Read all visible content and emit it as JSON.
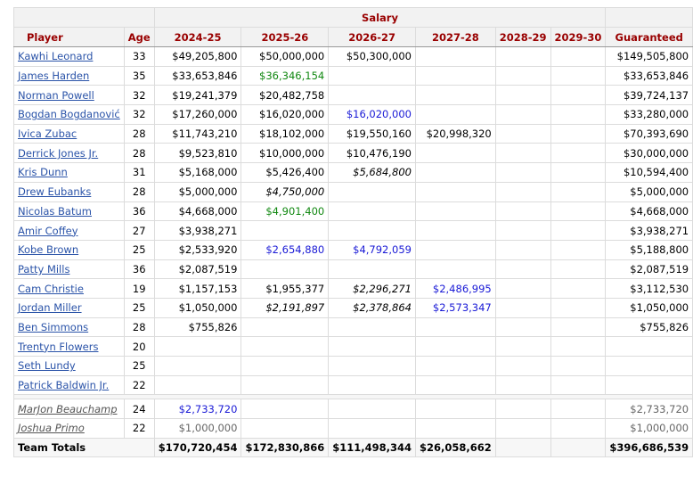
{
  "header": {
    "salary_label": "Salary",
    "columns": [
      "Player",
      "Age",
      "2024-25",
      "2025-26",
      "2026-27",
      "2027-28",
      "2028-29",
      "2029-30",
      "Guaranteed"
    ]
  },
  "rows": [
    {
      "player": "Kawhi Leonard",
      "age": "33",
      "cells": [
        {
          "v": "$49,205,800"
        },
        {
          "v": "$50,000,000"
        },
        {
          "v": "$50,300,000"
        },
        {
          "v": ""
        },
        {
          "v": ""
        },
        {
          "v": ""
        }
      ],
      "guaranteed": "$149,505,800"
    },
    {
      "player": "James Harden",
      "age": "35",
      "cells": [
        {
          "v": "$33,653,846"
        },
        {
          "v": "$36,346,154",
          "s": "green"
        },
        {
          "v": ""
        },
        {
          "v": ""
        },
        {
          "v": ""
        },
        {
          "v": ""
        }
      ],
      "guaranteed": "$33,653,846"
    },
    {
      "player": "Norman Powell",
      "age": "32",
      "cells": [
        {
          "v": "$19,241,379"
        },
        {
          "v": "$20,482,758"
        },
        {
          "v": ""
        },
        {
          "v": ""
        },
        {
          "v": ""
        },
        {
          "v": ""
        }
      ],
      "guaranteed": "$39,724,137"
    },
    {
      "player": "Bogdan Bogdanović",
      "age": "32",
      "cells": [
        {
          "v": "$17,260,000"
        },
        {
          "v": "$16,020,000"
        },
        {
          "v": "$16,020,000",
          "s": "blue"
        },
        {
          "v": ""
        },
        {
          "v": ""
        },
        {
          "v": ""
        }
      ],
      "guaranteed": "$33,280,000"
    },
    {
      "player": "Ivica Zubac",
      "age": "28",
      "cells": [
        {
          "v": "$11,743,210"
        },
        {
          "v": "$18,102,000"
        },
        {
          "v": "$19,550,160"
        },
        {
          "v": "$20,998,320"
        },
        {
          "v": ""
        },
        {
          "v": ""
        }
      ],
      "guaranteed": "$70,393,690"
    },
    {
      "player": "Derrick Jones Jr.",
      "age": "28",
      "cells": [
        {
          "v": "$9,523,810"
        },
        {
          "v": "$10,000,000"
        },
        {
          "v": "$10,476,190"
        },
        {
          "v": ""
        },
        {
          "v": ""
        },
        {
          "v": ""
        }
      ],
      "guaranteed": "$30,000,000"
    },
    {
      "player": "Kris Dunn",
      "age": "31",
      "cells": [
        {
          "v": "$5,168,000"
        },
        {
          "v": "$5,426,400"
        },
        {
          "v": "$5,684,800",
          "s": "ital"
        },
        {
          "v": ""
        },
        {
          "v": ""
        },
        {
          "v": ""
        }
      ],
      "guaranteed": "$10,594,400"
    },
    {
      "player": "Drew Eubanks",
      "age": "28",
      "cells": [
        {
          "v": "$5,000,000"
        },
        {
          "v": "$4,750,000",
          "s": "ital"
        },
        {
          "v": ""
        },
        {
          "v": ""
        },
        {
          "v": ""
        },
        {
          "v": ""
        }
      ],
      "guaranteed": "$5,000,000"
    },
    {
      "player": "Nicolas Batum",
      "age": "36",
      "cells": [
        {
          "v": "$4,668,000"
        },
        {
          "v": "$4,901,400",
          "s": "green"
        },
        {
          "v": ""
        },
        {
          "v": ""
        },
        {
          "v": ""
        },
        {
          "v": ""
        }
      ],
      "guaranteed": "$4,668,000"
    },
    {
      "player": "Amir Coffey",
      "age": "27",
      "cells": [
        {
          "v": "$3,938,271"
        },
        {
          "v": ""
        },
        {
          "v": ""
        },
        {
          "v": ""
        },
        {
          "v": ""
        },
        {
          "v": ""
        }
      ],
      "guaranteed": "$3,938,271"
    },
    {
      "player": "Kobe Brown",
      "age": "25",
      "cells": [
        {
          "v": "$2,533,920"
        },
        {
          "v": "$2,654,880",
          "s": "blue"
        },
        {
          "v": "$4,792,059",
          "s": "blue"
        },
        {
          "v": ""
        },
        {
          "v": ""
        },
        {
          "v": ""
        }
      ],
      "guaranteed": "$5,188,800"
    },
    {
      "player": "Patty Mills",
      "age": "36",
      "cells": [
        {
          "v": "$2,087,519"
        },
        {
          "v": ""
        },
        {
          "v": ""
        },
        {
          "v": ""
        },
        {
          "v": ""
        },
        {
          "v": ""
        }
      ],
      "guaranteed": "$2,087,519"
    },
    {
      "player": "Cam Christie",
      "age": "19",
      "cells": [
        {
          "v": "$1,157,153"
        },
        {
          "v": "$1,955,377"
        },
        {
          "v": "$2,296,271",
          "s": "ital"
        },
        {
          "v": "$2,486,995",
          "s": "blue"
        },
        {
          "v": ""
        },
        {
          "v": ""
        }
      ],
      "guaranteed": "$3,112,530"
    },
    {
      "player": "Jordan Miller",
      "age": "25",
      "cells": [
        {
          "v": "$1,050,000"
        },
        {
          "v": "$2,191,897",
          "s": "ital"
        },
        {
          "v": "$2,378,864",
          "s": "ital"
        },
        {
          "v": "$2,573,347",
          "s": "blue"
        },
        {
          "v": ""
        },
        {
          "v": ""
        }
      ],
      "guaranteed": "$1,050,000"
    },
    {
      "player": "Ben Simmons",
      "age": "28",
      "cells": [
        {
          "v": "$755,826"
        },
        {
          "v": ""
        },
        {
          "v": ""
        },
        {
          "v": ""
        },
        {
          "v": ""
        },
        {
          "v": ""
        }
      ],
      "guaranteed": "$755,826"
    },
    {
      "player": "Trentyn Flowers",
      "age": "20",
      "cells": [
        {
          "v": ""
        },
        {
          "v": ""
        },
        {
          "v": ""
        },
        {
          "v": ""
        },
        {
          "v": ""
        },
        {
          "v": ""
        }
      ],
      "guaranteed": ""
    },
    {
      "player": "Seth Lundy",
      "age": "25",
      "cells": [
        {
          "v": ""
        },
        {
          "v": ""
        },
        {
          "v": ""
        },
        {
          "v": ""
        },
        {
          "v": ""
        },
        {
          "v": ""
        }
      ],
      "guaranteed": ""
    },
    {
      "player": "Patrick Baldwin Jr.",
      "age": "22",
      "cells": [
        {
          "v": ""
        },
        {
          "v": ""
        },
        {
          "v": ""
        },
        {
          "v": ""
        },
        {
          "v": ""
        },
        {
          "v": ""
        }
      ],
      "guaranteed": ""
    }
  ],
  "dead_rows": [
    {
      "player": "MarJon Beauchamp",
      "age": "24",
      "cells": [
        {
          "v": "$2,733,720",
          "s": "blue"
        },
        {
          "v": ""
        },
        {
          "v": ""
        },
        {
          "v": ""
        },
        {
          "v": ""
        },
        {
          "v": ""
        }
      ],
      "guaranteed": "$2,733,720"
    },
    {
      "player": "Joshua Primo",
      "age": "22",
      "cells": [
        {
          "v": "$1,000,000",
          "s": "gray"
        },
        {
          "v": ""
        },
        {
          "v": ""
        },
        {
          "v": ""
        },
        {
          "v": ""
        },
        {
          "v": ""
        }
      ],
      "guaranteed": "$1,000,000"
    }
  ],
  "totals": {
    "label": "Team Totals",
    "cells": [
      "$170,720,454",
      "$172,830,866",
      "$111,498,344",
      "$26,058,662",
      "",
      ""
    ],
    "guaranteed": "$396,686,539"
  },
  "colors": {
    "header_text": "#990000",
    "link": "#2a53a8",
    "green": "#118811",
    "blue": "#1a1ad6"
  }
}
